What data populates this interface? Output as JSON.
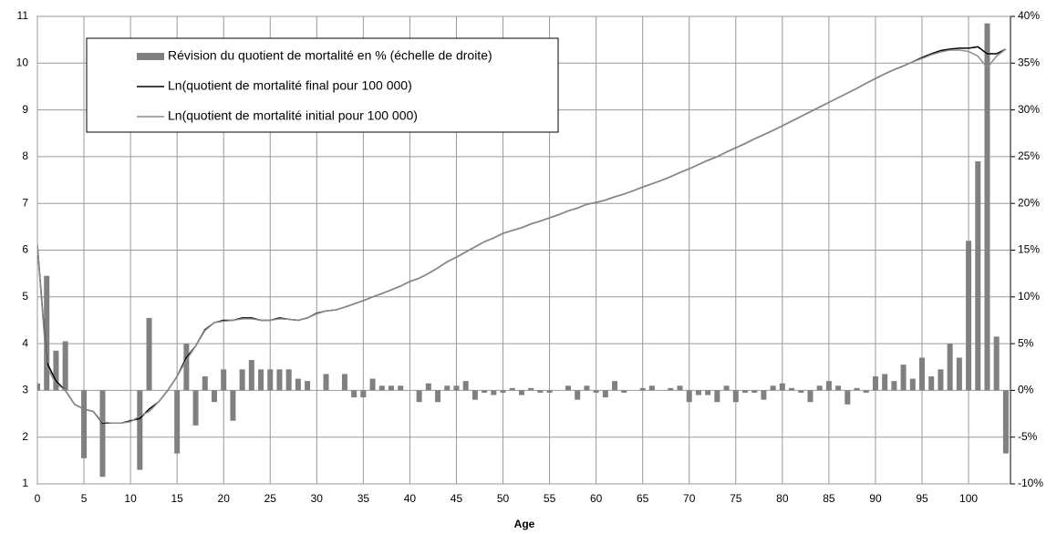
{
  "chart_data": {
    "type": "bar-line",
    "x_label": "Age",
    "x": [
      0,
      1,
      2,
      3,
      4,
      5,
      6,
      7,
      8,
      9,
      10,
      11,
      12,
      13,
      14,
      15,
      16,
      17,
      18,
      19,
      20,
      21,
      22,
      23,
      24,
      25,
      26,
      27,
      28,
      29,
      30,
      31,
      32,
      33,
      34,
      35,
      36,
      37,
      38,
      39,
      40,
      41,
      42,
      43,
      44,
      45,
      46,
      47,
      48,
      49,
      50,
      51,
      52,
      53,
      54,
      55,
      56,
      57,
      58,
      59,
      60,
      61,
      62,
      63,
      64,
      65,
      66,
      67,
      68,
      69,
      70,
      71,
      72,
      73,
      74,
      75,
      76,
      77,
      78,
      79,
      80,
      81,
      82,
      83,
      84,
      85,
      86,
      87,
      88,
      89,
      90,
      91,
      92,
      93,
      94,
      95,
      96,
      97,
      98,
      99,
      100,
      101,
      102,
      103,
      104
    ],
    "xlim": [
      0,
      104.5
    ],
    "xticks": [
      0,
      5,
      10,
      15,
      20,
      25,
      30,
      35,
      40,
      45,
      50,
      55,
      60,
      65,
      70,
      75,
      80,
      85,
      90,
      95,
      100
    ],
    "ylim": [
      1,
      11
    ],
    "yticks": [
      1,
      2,
      3,
      4,
      5,
      6,
      7,
      8,
      9,
      10,
      11
    ],
    "y2lim": [
      -10,
      40
    ],
    "y2ticks": [
      {
        "value": -10,
        "label": "-10%"
      },
      {
        "value": -5,
        "label": "-5%"
      },
      {
        "value": 0,
        "label": "0%"
      },
      {
        "value": 5,
        "label": "5%"
      },
      {
        "value": 10,
        "label": "10%"
      },
      {
        "value": 15,
        "label": "15%"
      },
      {
        "value": 20,
        "label": "20%"
      },
      {
        "value": 25,
        "label": "25%"
      },
      {
        "value": 30,
        "label": "30%"
      },
      {
        "value": 35,
        "label": "35%"
      },
      {
        "value": 40,
        "label": "40%"
      }
    ],
    "grid": true,
    "legend": "top-left",
    "series": [
      {
        "name": "Révision du quotient de mortalité en % (échelle de droite)",
        "type": "bar",
        "axis": "y2",
        "color": "#808080",
        "values": [
          0.75,
          12.25,
          4.25,
          5.25,
          0,
          -7.25,
          0,
          -9.25,
          0,
          0,
          0,
          -8.5,
          7.75,
          0,
          0,
          -6.75,
          5,
          -3.75,
          1.5,
          -1.25,
          2.25,
          -3.25,
          2.25,
          3.25,
          2.25,
          2.25,
          2.25,
          2.25,
          1.25,
          1,
          0,
          1.75,
          0,
          1.75,
          -0.75,
          -0.75,
          1.25,
          0.5,
          0.5,
          0.5,
          0,
          -1.25,
          0.75,
          -1.25,
          0.5,
          0.5,
          1,
          -1,
          -0.25,
          -0.5,
          -0.25,
          0.25,
          -0.5,
          0.25,
          -0.25,
          -0.25,
          0,
          0.5,
          -1,
          0.5,
          -0.25,
          -0.75,
          1,
          -0.25,
          0,
          0.25,
          0.5,
          0,
          0.25,
          0.5,
          -1.25,
          -0.5,
          -0.5,
          -1.25,
          0.5,
          -1.25,
          -0.25,
          -0.25,
          -1,
          0.5,
          0.75,
          0.25,
          -0.25,
          -1.25,
          0.5,
          1,
          0.5,
          -1.5,
          0.25,
          -0.25,
          1.5,
          1.75,
          1,
          2.75,
          1.25,
          3.5,
          1.5,
          2.25,
          5,
          3.5,
          16,
          24.5,
          39.25,
          5.75,
          -6.75
        ]
      },
      {
        "name": "Ln(quotient de mortalité final pour 100 000)",
        "type": "line",
        "color": "#000000",
        "values": [
          6.1,
          3.6,
          3.2,
          3.0,
          2.7,
          2.6,
          2.55,
          2.3,
          2.3,
          2.3,
          2.35,
          2.4,
          2.6,
          2.75,
          3.0,
          3.3,
          3.7,
          3.95,
          4.3,
          4.45,
          4.5,
          4.5,
          4.55,
          4.55,
          4.5,
          4.5,
          4.55,
          4.52,
          4.5,
          4.55,
          4.65,
          4.7,
          4.72,
          4.78,
          4.85,
          4.92,
          5.0,
          5.07,
          5.15,
          5.23,
          5.33,
          5.4,
          5.5,
          5.62,
          5.75,
          5.85,
          5.96,
          6.07,
          6.18,
          6.26,
          6.36,
          6.42,
          6.48,
          6.56,
          6.62,
          6.69,
          6.76,
          6.84,
          6.9,
          6.98,
          7.02,
          7.07,
          7.14,
          7.2,
          7.27,
          7.35,
          7.42,
          7.49,
          7.57,
          7.66,
          7.74,
          7.83,
          7.92,
          8.0,
          8.1,
          8.19,
          8.28,
          8.38,
          8.47,
          8.56,
          8.66,
          8.76,
          8.86,
          8.96,
          9.06,
          9.16,
          9.26,
          9.36,
          9.46,
          9.57,
          9.67,
          9.77,
          9.86,
          9.94,
          10.03,
          10.12,
          10.2,
          10.27,
          10.3,
          10.32,
          10.32,
          10.35,
          10.2,
          10.2,
          10.3
        ]
      },
      {
        "name": "Ln(quotient de mortalité initial pour 100 000)",
        "type": "line",
        "color": "#8c8c8c",
        "values": [
          6.1,
          3.5,
          3.15,
          3.0,
          2.7,
          2.6,
          2.55,
          2.32,
          2.3,
          2.3,
          2.33,
          2.45,
          2.55,
          2.75,
          3.0,
          3.3,
          3.65,
          3.95,
          4.28,
          4.45,
          4.48,
          4.5,
          4.53,
          4.53,
          4.5,
          4.5,
          4.53,
          4.52,
          4.5,
          4.55,
          4.64,
          4.7,
          4.72,
          4.78,
          4.85,
          4.92,
          5.0,
          5.07,
          5.15,
          5.23,
          5.33,
          5.4,
          5.5,
          5.62,
          5.75,
          5.85,
          5.96,
          6.07,
          6.18,
          6.26,
          6.36,
          6.42,
          6.48,
          6.56,
          6.62,
          6.69,
          6.76,
          6.84,
          6.9,
          6.98,
          7.02,
          7.07,
          7.14,
          7.2,
          7.27,
          7.35,
          7.42,
          7.49,
          7.57,
          7.66,
          7.74,
          7.83,
          7.92,
          8.0,
          8.1,
          8.19,
          8.28,
          8.38,
          8.47,
          8.56,
          8.66,
          8.76,
          8.86,
          8.96,
          9.06,
          9.16,
          9.26,
          9.36,
          9.46,
          9.57,
          9.67,
          9.77,
          9.86,
          9.94,
          10.03,
          10.1,
          10.18,
          10.24,
          10.28,
          10.28,
          10.25,
          10.15,
          9.9,
          10.15,
          10.3
        ]
      }
    ]
  }
}
